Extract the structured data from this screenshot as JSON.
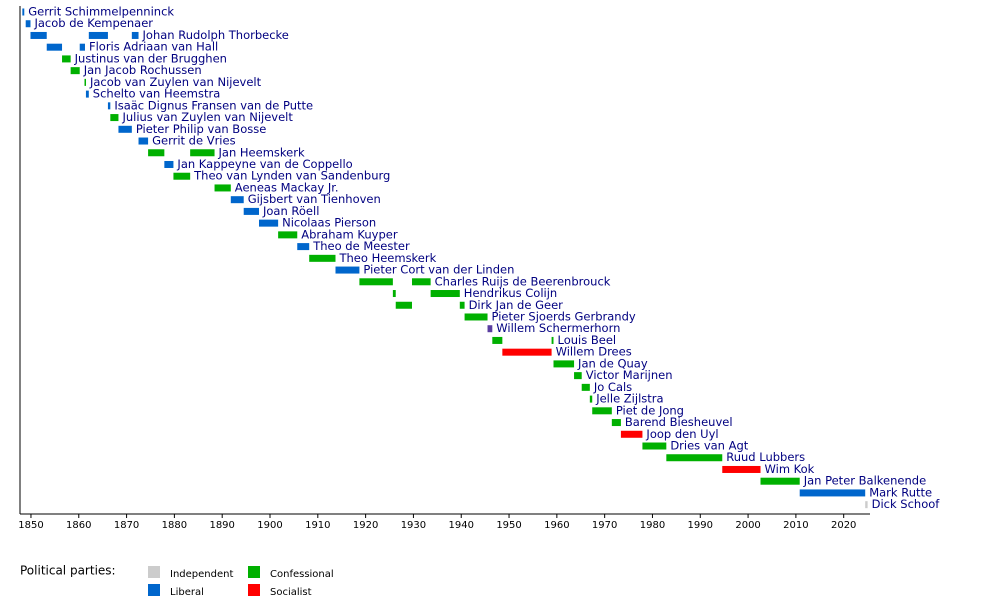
{
  "chart_data": {
    "type": "timeline",
    "xlim": [
      1848,
      2025
    ],
    "xticks": [
      1850,
      1860,
      1870,
      1880,
      1890,
      1900,
      1910,
      1920,
      1930,
      1940,
      1950,
      1960,
      1970,
      1980,
      1990,
      2000,
      2010,
      2020
    ],
    "legend_title": "Political parties:",
    "parties": [
      {
        "name": "Independent",
        "color": "#cccccc"
      },
      {
        "name": "Liberal",
        "color": "#0066cc"
      },
      {
        "name": "Confessional",
        "color": "#00b000"
      },
      {
        "name": "Socialist",
        "color": "#ff0000"
      }
    ],
    "rows": [
      {
        "name": "Gerrit Schimmelpenninck",
        "party": "Liberal",
        "periods": [
          [
            1848.2,
            1848.6
          ]
        ]
      },
      {
        "name": "Jacob de Kempenaer",
        "party": "Liberal",
        "periods": [
          [
            1848.9,
            1849.9
          ]
        ]
      },
      {
        "name": "Johan Rudolph Thorbecke",
        "party": "Liberal",
        "periods": [
          [
            1849.9,
            1853.3
          ],
          [
            1862.1,
            1866.1
          ],
          [
            1871.1,
            1872.5
          ]
        ]
      },
      {
        "name": "Floris Adriaan van Hall",
        "party": "Liberal",
        "periods": [
          [
            1853.3,
            1856.5
          ],
          [
            1860.2,
            1861.3
          ]
        ]
      },
      {
        "name": "Justinus van der Brugghen",
        "party": "Confessional",
        "periods": [
          [
            1856.5,
            1858.3
          ]
        ]
      },
      {
        "name": "Jan Jacob Rochussen",
        "party": "Confessional",
        "periods": [
          [
            1858.3,
            1860.2
          ]
        ]
      },
      {
        "name": "Jacob van Zuylen van Nijevelt",
        "party": "Confessional",
        "periods": [
          [
            1861.2,
            1861.5
          ]
        ]
      },
      {
        "name": "Schelto van Heemstra",
        "party": "Liberal",
        "periods": [
          [
            1861.5,
            1862.1
          ]
        ]
      },
      {
        "name": "Isaäc Dignus Fransen van de Putte",
        "party": "Liberal",
        "periods": [
          [
            1866.1,
            1866.6
          ]
        ]
      },
      {
        "name": "Julius van Zuylen van Nijevelt",
        "party": "Confessional",
        "periods": [
          [
            1866.6,
            1868.3
          ]
        ]
      },
      {
        "name": "Pieter Philip van Bosse",
        "party": "Liberal",
        "periods": [
          [
            1868.3,
            1871.1
          ]
        ]
      },
      {
        "name": "Gerrit de Vries",
        "party": "Liberal",
        "periods": [
          [
            1872.5,
            1874.5
          ]
        ]
      },
      {
        "name": "Jan Heemskerk",
        "party": "Confessional",
        "periods": [
          [
            1874.5,
            1877.9
          ],
          [
            1883.3,
            1888.4
          ]
        ]
      },
      {
        "name": "Jan Kappeyne van de Coppello",
        "party": "Liberal",
        "periods": [
          [
            1877.9,
            1879.8
          ]
        ]
      },
      {
        "name": "Theo van Lynden van Sandenburg",
        "party": "Confessional",
        "periods": [
          [
            1879.8,
            1883.3
          ]
        ]
      },
      {
        "name": "Aeneas Mackay Jr.",
        "party": "Confessional",
        "periods": [
          [
            1888.4,
            1891.8
          ]
        ]
      },
      {
        "name": "Gijsbert van Tienhoven",
        "party": "Liberal",
        "periods": [
          [
            1891.8,
            1894.5
          ]
        ]
      },
      {
        "name": "Joan Röell",
        "party": "Liberal",
        "periods": [
          [
            1894.5,
            1897.7
          ]
        ]
      },
      {
        "name": "Nicolaas Pierson",
        "party": "Liberal",
        "periods": [
          [
            1897.7,
            1901.7
          ]
        ]
      },
      {
        "name": "Abraham Kuyper",
        "party": "Confessional",
        "periods": [
          [
            1901.7,
            1905.7
          ]
        ]
      },
      {
        "name": "Theo de Meester",
        "party": "Liberal",
        "periods": [
          [
            1905.7,
            1908.2
          ]
        ]
      },
      {
        "name": "Theo Heemskerk",
        "party": "Confessional",
        "periods": [
          [
            1908.2,
            1913.7
          ]
        ]
      },
      {
        "name": "Pieter Cort van der Linden",
        "party": "Liberal",
        "periods": [
          [
            1913.7,
            1918.7
          ]
        ]
      },
      {
        "name": "Charles Ruijs de Beerenbrouck",
        "party": "Confessional",
        "periods": [
          [
            1918.7,
            1925.7
          ],
          [
            1929.7,
            1933.6
          ]
        ]
      },
      {
        "name": "Hendrikus Colijn",
        "party": "Confessional",
        "periods": [
          [
            1925.7,
            1926.3
          ],
          [
            1933.6,
            1939.7
          ]
        ]
      },
      {
        "name": "Dirk Jan de Geer",
        "party": "Confessional",
        "periods": [
          [
            1926.3,
            1929.7
          ],
          [
            1939.7,
            1940.7
          ]
        ]
      },
      {
        "name": "Pieter Sjoerds Gerbrandy",
        "party": "Confessional",
        "periods": [
          [
            1940.7,
            1945.5
          ]
        ]
      },
      {
        "name": "Willem Schermerhorn",
        "party": "Socialist",
        "color": "#5a3ea0",
        "periods": [
          [
            1945.5,
            1946.5
          ]
        ]
      },
      {
        "name": "Louis Beel",
        "party": "Confessional",
        "periods": [
          [
            1946.5,
            1948.6
          ],
          [
            1958.9,
            1959.3
          ]
        ]
      },
      {
        "name": "Willem Drees",
        "party": "Socialist",
        "periods": [
          [
            1948.6,
            1958.9
          ]
        ]
      },
      {
        "name": "Jan de Quay",
        "party": "Confessional",
        "periods": [
          [
            1959.3,
            1963.6
          ]
        ]
      },
      {
        "name": "Victor Marijnen",
        "party": "Confessional",
        "periods": [
          [
            1963.6,
            1965.2
          ]
        ]
      },
      {
        "name": "Jo Cals",
        "party": "Confessional",
        "periods": [
          [
            1965.2,
            1966.9
          ]
        ]
      },
      {
        "name": "Jelle Zijlstra",
        "party": "Confessional",
        "periods": [
          [
            1966.9,
            1967.4
          ]
        ]
      },
      {
        "name": "Piet de Jong",
        "party": "Confessional",
        "periods": [
          [
            1967.4,
            1971.5
          ]
        ]
      },
      {
        "name": "Barend Biesheuvel",
        "party": "Confessional",
        "periods": [
          [
            1971.5,
            1973.4
          ]
        ]
      },
      {
        "name": "Joop den Uyl",
        "party": "Socialist",
        "periods": [
          [
            1973.4,
            1977.9
          ]
        ]
      },
      {
        "name": "Dries van Agt",
        "party": "Confessional",
        "periods": [
          [
            1977.9,
            1982.9
          ]
        ]
      },
      {
        "name": "Ruud Lubbers",
        "party": "Confessional",
        "periods": [
          [
            1982.9,
            1994.6
          ]
        ]
      },
      {
        "name": "Wim Kok",
        "party": "Socialist",
        "periods": [
          [
            1994.6,
            2002.6
          ]
        ]
      },
      {
        "name": "Jan Peter Balkenende",
        "party": "Confessional",
        "periods": [
          [
            2002.6,
            2010.8
          ]
        ]
      },
      {
        "name": "Mark Rutte",
        "party": "Liberal",
        "periods": [
          [
            2010.8,
            2024.5
          ]
        ]
      },
      {
        "name": "Dick Schoof",
        "party": "Independent",
        "periods": [
          [
            2024.5,
            2025
          ]
        ]
      }
    ]
  }
}
